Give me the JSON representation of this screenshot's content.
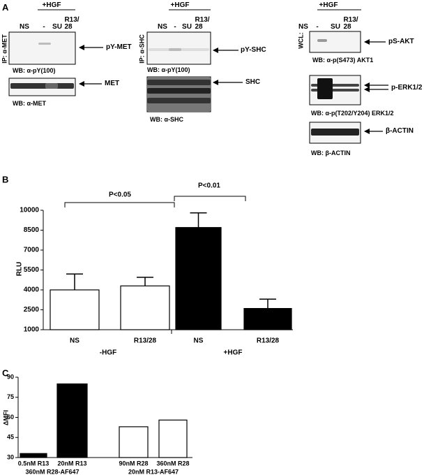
{
  "panel_a": {
    "label": "A",
    "groups": [
      {
        "treatment": "+HGF",
        "lanes": [
          "NS",
          "-",
          "SU",
          "R13/\n28"
        ],
        "ip": "IP: α-MET",
        "rows": [
          {
            "target": "pY-MET",
            "wb": "WB: α-pY(100)"
          },
          {
            "target": "MET",
            "wb": "WB: α-MET"
          }
        ]
      },
      {
        "treatment": "+HGF",
        "lanes": [
          "NS",
          "-",
          "SU",
          "R13/\n28"
        ],
        "ip": "IP: α-SHC",
        "rows": [
          {
            "target": "pY-SHC",
            "wb": "WB: α-pY(100)"
          },
          {
            "target": "SHC",
            "wb": "WB: α-SHC"
          }
        ]
      },
      {
        "treatment": "+HGF",
        "lanes": [
          "NS",
          "-",
          "SU",
          "R13/\n28"
        ],
        "ip": "WCL:",
        "rows": [
          {
            "target": "pS-AKT",
            "wb": "WB: α-p(S473) AKT1"
          },
          {
            "target": "p-ERK1/2",
            "wb": "WB: α-p(T202/Y204) ERK1/2"
          },
          {
            "target": "β-ACTIN",
            "wb": "WB: β-ACTIN"
          }
        ]
      }
    ]
  },
  "chart_data": [
    {
      "type": "bar",
      "panel_label": "B",
      "y_label": "RLU",
      "categories": [
        "NS",
        "R13/28",
        "NS",
        "R13/28"
      ],
      "group_labels": [
        "-HGF",
        "+HGF"
      ],
      "values": [
        4000,
        4300,
        8700,
        2600
      ],
      "errors": [
        1200,
        650,
        1100,
        700
      ],
      "colors": [
        "#ffffff",
        "#ffffff",
        "#000000",
        "#000000"
      ],
      "ylim": [
        1000,
        10000
      ],
      "yticks": [
        1000,
        2500,
        4000,
        5500,
        7000,
        8500,
        10000
      ],
      "annotations": [
        "P<0.05",
        "P<0.01"
      ]
    },
    {
      "type": "bar",
      "panel_label": "C",
      "y_label": "ΔMFI",
      "categories": [
        "0.5nM R13",
        "20nM R13",
        "90nM R28",
        "360nM R28"
      ],
      "group_labels": [
        "360nM R28-AF647",
        "20nM R13-AF647"
      ],
      "values": [
        33,
        85,
        53,
        58
      ],
      "colors": [
        "#000000",
        "#000000",
        "#ffffff",
        "#ffffff"
      ],
      "ylim": [
        30,
        90
      ],
      "yticks": [
        30,
        45,
        60,
        75,
        90
      ]
    }
  ]
}
